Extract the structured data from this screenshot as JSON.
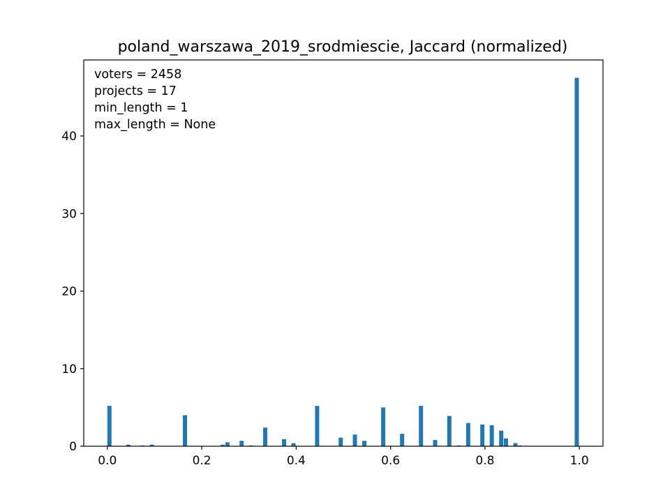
{
  "chart_data": {
    "type": "bar",
    "title": "poland_warszawa_2019_srodmiescie, Jaccard (normalized)",
    "xlabel": "",
    "ylabel": "",
    "xlim": [
      -0.05,
      1.05
    ],
    "ylim": [
      0,
      49.8
    ],
    "bar_width": 0.01,
    "color": "#1f77b4",
    "xticks": [
      {
        "value": 0.0,
        "label": "0.0"
      },
      {
        "value": 0.2,
        "label": "0.2"
      },
      {
        "value": 0.4,
        "label": "0.4"
      },
      {
        "value": 0.6,
        "label": "0.6"
      },
      {
        "value": 0.8,
        "label": "0.8"
      },
      {
        "value": 1.0,
        "label": "1.0"
      }
    ],
    "yticks": [
      {
        "value": 0,
        "label": "0"
      },
      {
        "value": 10,
        "label": "10"
      },
      {
        "value": 20,
        "label": "20"
      },
      {
        "value": 30,
        "label": "30"
      },
      {
        "value": 40,
        "label": "40"
      }
    ],
    "annotation_lines": [
      "voters = 2458",
      "projects = 17",
      "min_length = 1",
      "max_length = None"
    ],
    "x": [
      0.005,
      0.045,
      0.075,
      0.095,
      0.165,
      0.245,
      0.255,
      0.285,
      0.305,
      0.335,
      0.375,
      0.395,
      0.445,
      0.495,
      0.525,
      0.545,
      0.585,
      0.625,
      0.665,
      0.695,
      0.725,
      0.745,
      0.765,
      0.795,
      0.815,
      0.835,
      0.845,
      0.865,
      0.875,
      0.995
    ],
    "values": [
      5.2,
      0.2,
      0.1,
      0.2,
      4.0,
      0.2,
      0.5,
      0.7,
      0.1,
      2.4,
      0.9,
      0.4,
      5.2,
      1.1,
      1.5,
      0.7,
      5.0,
      1.6,
      5.2,
      0.8,
      3.9,
      0.1,
      3.0,
      2.8,
      2.7,
      2.0,
      1.0,
      0.4,
      0.1,
      47.5
    ]
  }
}
